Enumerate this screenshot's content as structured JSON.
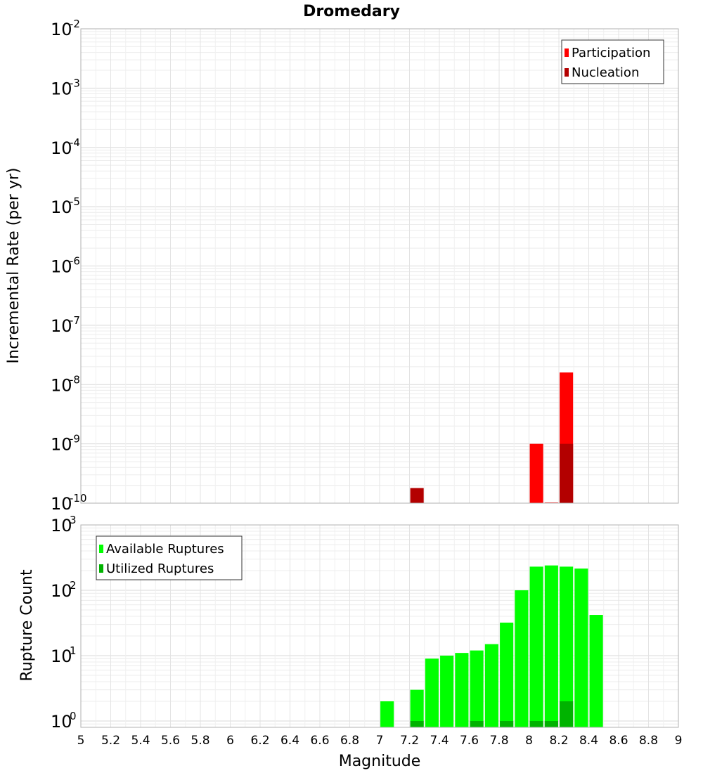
{
  "chart_data": [
    {
      "type": "bar",
      "title": "Dromedary",
      "xlabel": "",
      "ylabel": "Incremental Rate (per yr)",
      "xlim": [
        5,
        9
      ],
      "ylim": [
        1e-10,
        0.01
      ],
      "yscale": "log",
      "grid": true,
      "legend_position": "top-right",
      "yticks": [
        {
          "base": "10",
          "exp": "-2"
        },
        {
          "base": "10",
          "exp": "-3"
        },
        {
          "base": "10",
          "exp": "-4"
        },
        {
          "base": "10",
          "exp": "-5"
        },
        {
          "base": "10",
          "exp": "-6"
        },
        {
          "base": "10",
          "exp": "-7"
        },
        {
          "base": "10",
          "exp": "-8"
        },
        {
          "base": "10",
          "exp": "-9"
        },
        {
          "base": "10",
          "exp": "-10"
        }
      ],
      "series": [
        {
          "name": "Participation",
          "color": "#ff0000",
          "points": [
            {
              "x": 8.05,
              "y": 1e-09
            },
            {
              "x": 8.15,
              "y": 1e-10
            },
            {
              "x": 8.25,
              "y": 1.6e-08
            }
          ]
        },
        {
          "name": "Nucleation",
          "color": "#b30000",
          "points": [
            {
              "x": 7.25,
              "y": 1.8e-10
            },
            {
              "x": 8.25,
              "y": 1e-09
            }
          ]
        }
      ]
    },
    {
      "type": "bar",
      "title": "",
      "xlabel": "Magnitude",
      "ylabel": "Rupture Count",
      "xlim": [
        5,
        9
      ],
      "ylim": [
        0.8,
        1000
      ],
      "yscale": "log",
      "grid": true,
      "legend_position": "top-left",
      "xticks": [
        "5",
        "5.2",
        "5.4",
        "5.6",
        "5.8",
        "6",
        "6.2",
        "6.4",
        "6.6",
        "6.8",
        "7",
        "7.2",
        "7.4",
        "7.6",
        "7.8",
        "8",
        "8.2",
        "8.4",
        "8.6",
        "8.8",
        "9"
      ],
      "yticks": [
        {
          "base": "10",
          "exp": "3"
        },
        {
          "base": "10",
          "exp": "2"
        },
        {
          "base": "10",
          "exp": "1"
        },
        {
          "base": "10",
          "exp": "0"
        }
      ],
      "series": [
        {
          "name": "Available Ruptures",
          "color": "#00ff00",
          "points": [
            {
              "x": 7.05,
              "y": 2
            },
            {
              "x": 7.25,
              "y": 3
            },
            {
              "x": 7.35,
              "y": 9
            },
            {
              "x": 7.45,
              "y": 10
            },
            {
              "x": 7.55,
              "y": 11
            },
            {
              "x": 7.65,
              "y": 12
            },
            {
              "x": 7.75,
              "y": 15
            },
            {
              "x": 7.85,
              "y": 32
            },
            {
              "x": 7.95,
              "y": 100
            },
            {
              "x": 8.05,
              "y": 230
            },
            {
              "x": 8.15,
              "y": 240
            },
            {
              "x": 8.25,
              "y": 230
            },
            {
              "x": 8.35,
              "y": 215
            },
            {
              "x": 8.45,
              "y": 42
            }
          ]
        },
        {
          "name": "Utilized Ruptures",
          "color": "#00b300",
          "points": [
            {
              "x": 7.25,
              "y": 1
            },
            {
              "x": 7.65,
              "y": 1
            },
            {
              "x": 7.85,
              "y": 1
            },
            {
              "x": 8.05,
              "y": 1
            },
            {
              "x": 8.15,
              "y": 1
            },
            {
              "x": 8.25,
              "y": 2
            }
          ]
        }
      ]
    }
  ]
}
